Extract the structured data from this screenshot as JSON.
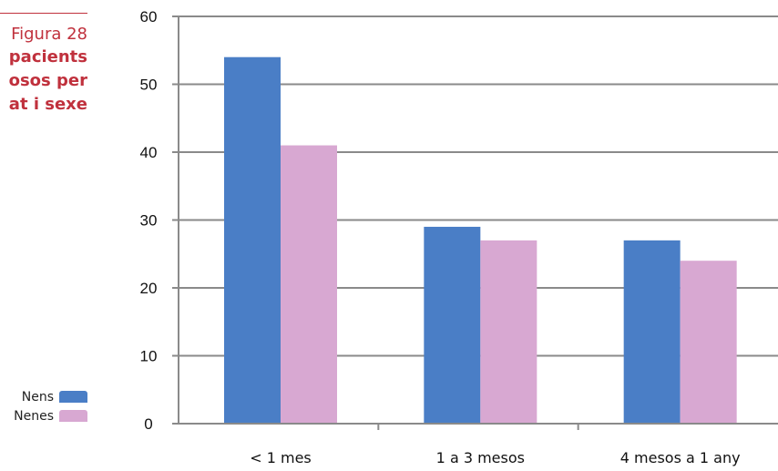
{
  "figure": {
    "label": "Figura 28",
    "title_lines": [
      "pacients",
      "osos per",
      "at i sexe"
    ]
  },
  "legend": [
    {
      "label": "Nens",
      "color": "#4a7ec6"
    },
    {
      "label": "Nenes",
      "color": "#d8a8d2"
    }
  ],
  "chart_data": {
    "type": "bar",
    "categories": [
      "< 1 mes",
      "1 a 3 mesos",
      "4 mesos a 1 any"
    ],
    "series": [
      {
        "name": "Nens",
        "values": [
          54,
          29,
          27
        ],
        "color": "#4a7ec6"
      },
      {
        "name": "Nenes",
        "values": [
          41,
          27,
          24
        ],
        "color": "#d8a8d2"
      }
    ],
    "ylim": [
      0,
      60
    ],
    "yticks": [
      0,
      10,
      20,
      30,
      40,
      50,
      60
    ],
    "grid": true,
    "legend_position": "bottom-left"
  }
}
